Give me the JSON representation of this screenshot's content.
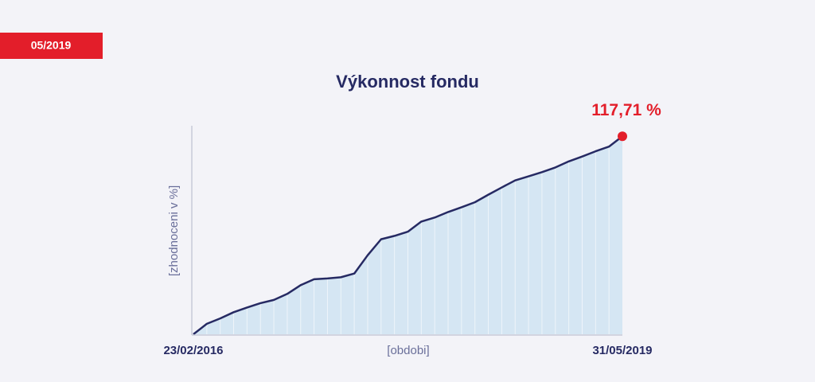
{
  "badge": "05/2019",
  "chart_data": {
    "type": "area",
    "title": "Výkonnost fondu",
    "x_label": "[obdobi]",
    "y_label": "[zhodnoceni v %]",
    "categories": [
      "23/02/2016",
      null,
      null,
      null,
      null,
      null,
      null,
      null,
      null,
      null,
      null,
      null,
      null,
      null,
      null,
      null,
      null,
      null,
      null,
      null,
      null,
      null,
      null,
      null,
      null,
      null,
      null,
      null,
      null,
      null,
      null,
      null,
      "31/05/2019"
    ],
    "values": [
      0,
      6.2,
      9.4,
      13.1,
      15.9,
      18.5,
      20.4,
      24.0,
      29.2,
      32.7,
      33.2,
      33.9,
      36.1,
      47,
      56.5,
      58.5,
      61,
      67,
      69.4,
      72.7,
      75.5,
      78.5,
      83,
      87.3,
      91.5,
      93.9,
      96.4,
      99.2,
      102.8,
      105.7,
      108.8,
      111.6,
      117.71
    ],
    "value_labels": [
      null,
      null,
      null,
      null,
      null,
      null,
      null,
      null,
      null,
      null,
      null,
      null,
      null,
      null,
      null,
      null,
      null,
      null,
      null,
      null,
      null,
      null,
      null,
      null,
      null,
      null,
      null,
      null,
      null,
      null,
      null,
      null,
      "117,71 %"
    ],
    "color": "#262a63",
    "fill": "#d5e6f3",
    "highlight_color": "#e31e2a",
    "ylim": [
      0,
      124
    ]
  }
}
